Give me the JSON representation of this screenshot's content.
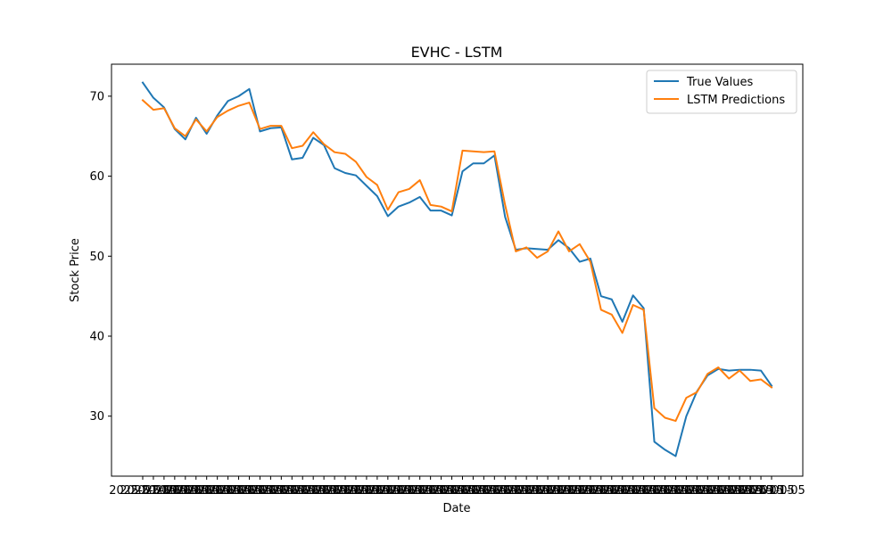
{
  "chart_data": {
    "type": "line",
    "title": "EVHC - LSTM",
    "xlabel": "Date",
    "ylabel": "Stock Price",
    "ylim": [
      22.5,
      74.0
    ],
    "yticks": [
      30,
      40,
      50,
      60,
      70
    ],
    "x_tick_text": "2025-01-05",
    "legend_position": "top-right",
    "grid": false,
    "series": [
      {
        "name": "True Values",
        "color": "#1f77b4",
        "values": [
          71.7,
          69.8,
          68.6,
          65.9,
          64.6,
          67.3,
          65.3,
          67.6,
          69.4,
          70.0,
          70.9,
          65.6,
          66.0,
          66.1,
          62.1,
          62.3,
          64.8,
          63.9,
          61.0,
          60.4,
          60.1,
          58.8,
          57.5,
          55.0,
          56.2,
          56.7,
          57.4,
          55.7,
          55.7,
          55.1,
          60.6,
          61.6,
          61.6,
          62.6,
          54.9,
          50.8,
          51.0,
          50.9,
          50.8,
          52.0,
          51.0,
          49.3,
          49.7,
          45.0,
          44.6,
          41.8,
          45.1,
          43.5,
          26.8,
          25.8,
          25.0,
          30.0,
          33.1,
          35.1,
          35.9,
          35.7,
          35.8,
          35.8,
          35.7,
          33.8
        ]
      },
      {
        "name": "LSTM Predictions",
        "color": "#ff7f0e",
        "values": [
          69.5,
          68.3,
          68.5,
          66.0,
          65.0,
          67.1,
          65.6,
          67.4,
          68.2,
          68.8,
          69.2,
          65.9,
          66.3,
          66.3,
          63.5,
          63.8,
          65.5,
          64.0,
          63.0,
          62.8,
          61.8,
          59.9,
          58.9,
          55.8,
          58.0,
          58.4,
          59.5,
          56.4,
          56.2,
          55.6,
          63.2,
          63.1,
          63.0,
          63.1,
          56.4,
          50.6,
          51.1,
          49.8,
          50.6,
          53.1,
          50.6,
          51.5,
          49.3,
          43.3,
          42.7,
          40.4,
          43.9,
          43.3,
          31.0,
          29.8,
          29.4,
          32.3,
          33.0,
          35.3,
          36.1,
          34.7,
          35.7,
          34.4,
          34.6,
          33.6
        ]
      }
    ]
  }
}
